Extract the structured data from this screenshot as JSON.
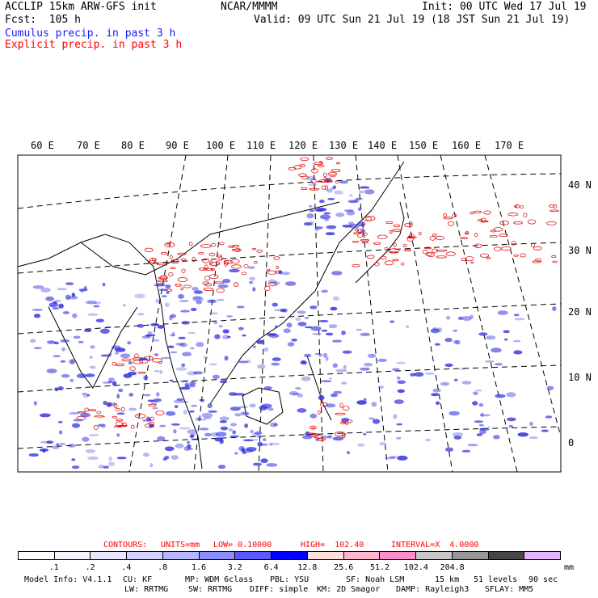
{
  "header": {
    "model": "ACCLIP 15km ARW-GFS init",
    "org": "NCAR/MMMM",
    "init": "Init: 00 UTC Wed 17 Jul 19",
    "fcst": "Fcst:  105 h",
    "valid": "Valid: 09 UTC Sun 21 Jul 19 (18 JST Sun 21 Jul 19)",
    "cumulus": "Cumulus precip. in past 3 h",
    "explicit": "Explicit precip. in past 3 h"
  },
  "colors": {
    "cumulus_label": "#1a1aff",
    "explicit_label": "#ff0000",
    "cumulus_precip": "#3030e0",
    "explicit_precip": "#e00000"
  },
  "map": {
    "lon_labels": [
      "60 E",
      "70 E",
      "80 E",
      "90 E",
      "100 E",
      "110 E",
      "120 E",
      "130 E",
      "140 E",
      "150 E",
      "160 E",
      "170 E"
    ],
    "lat_labels": [
      "40 N",
      "30 N",
      "20 N",
      "10 N",
      "0"
    ]
  },
  "contours": {
    "label": "CONTOURS:",
    "units": "UNITS=mm",
    "low": "LOW= 0.10000",
    "high": "HIGH=  102.40",
    "interval": "INTERVAL=X  4.0000"
  },
  "colorbar": {
    "colors": [
      "#ffffff",
      "#f4f4ff",
      "#e6e6ff",
      "#d2d2ff",
      "#b6b6ff",
      "#8c8cff",
      "#5a5aff",
      "#0000ff",
      "#ffdede",
      "#ffb6cc",
      "#ff8ccc",
      "#c8c8c8",
      "#969696",
      "#464646",
      "#e6b4ff"
    ],
    "ticks": [
      ".1",
      ".2",
      ".4",
      ".8",
      "1.6",
      "3.2",
      "6.4",
      "12.8",
      "25.6",
      "51.2",
      "102.4",
      "204.8"
    ],
    "units": "mm"
  },
  "footer": {
    "line1": [
      "Model Info: V4.1.1",
      "CU: KF",
      "MP: WDM 6class",
      "PBL: YSU",
      "SF: Noah LSM",
      "15 km",
      "51 levels",
      "90 sec"
    ],
    "line2": [
      "LW: RRTMG",
      "SW: RRTMG",
      "DIFF: simple",
      "KM: 2D Smagor",
      "DAMP: Rayleigh3",
      "SFLAY: MM5"
    ]
  }
}
